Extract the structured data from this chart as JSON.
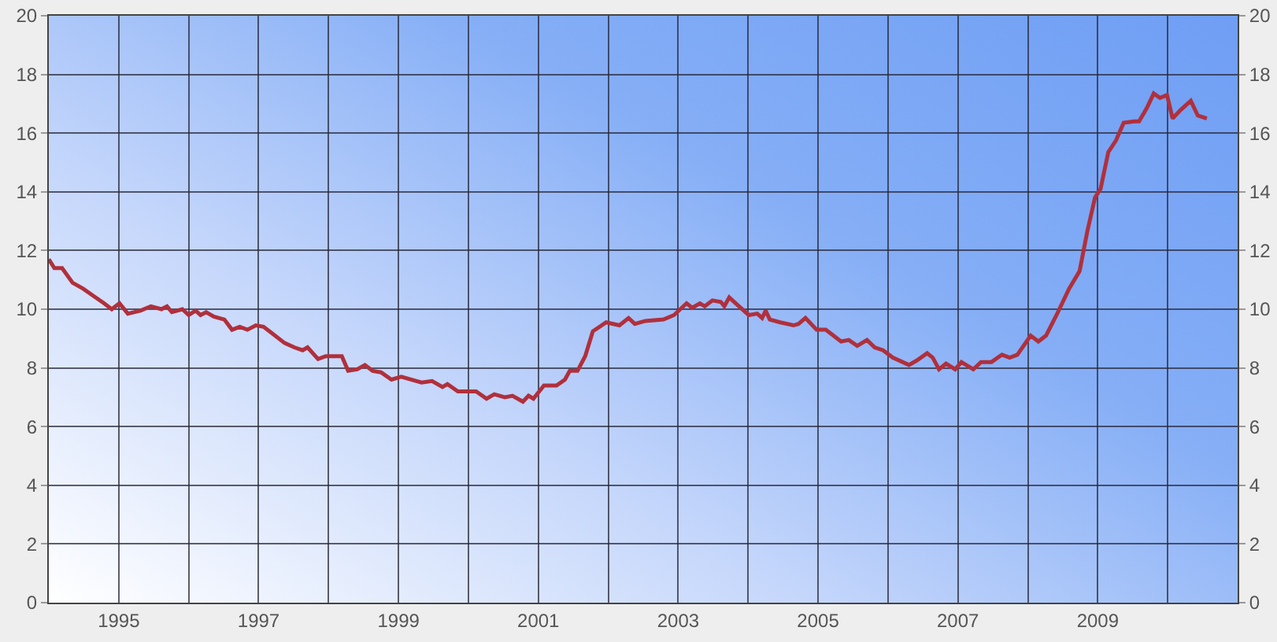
{
  "chart_data": {
    "type": "line",
    "x": [
      1994.0,
      1994.08,
      1994.19,
      1994.34,
      1994.49,
      1994.64,
      1994.79,
      1994.9,
      1995.01,
      1995.13,
      1995.31,
      1995.46,
      1995.61,
      1995.69,
      1995.76,
      1995.91,
      1996.0,
      1996.1,
      1996.17,
      1996.25,
      1996.36,
      1996.51,
      1996.62,
      1996.73,
      1996.84,
      1996.96,
      1997.07,
      1997.18,
      1997.37,
      1997.51,
      1997.63,
      1997.7,
      1997.85,
      1997.96,
      1998.19,
      1998.28,
      1998.41,
      1998.52,
      1998.63,
      1998.75,
      1998.9,
      1999.04,
      1999.33,
      1999.48,
      1999.63,
      1999.7,
      1999.85,
      2000.11,
      2000.26,
      2000.37,
      2000.52,
      2000.63,
      2000.78,
      2000.86,
      2000.93,
      2001.08,
      2001.26,
      2001.38,
      2001.45,
      2001.56,
      2001.67,
      2001.78,
      2001.97,
      2002.16,
      2002.29,
      2002.38,
      2002.53,
      2002.79,
      2002.94,
      2003.12,
      2003.2,
      2003.31,
      2003.38,
      2003.49,
      2003.61,
      2003.66,
      2003.73,
      2003.87,
      2004.01,
      2004.13,
      2004.2,
      2004.25,
      2004.31,
      2004.46,
      2004.65,
      2004.72,
      2004.82,
      2004.98,
      2005.11,
      2005.33,
      2005.44,
      2005.56,
      2005.7,
      2005.81,
      2005.93,
      2006.07,
      2006.3,
      2006.41,
      2006.56,
      2006.64,
      2006.73,
      2006.83,
      2006.96,
      2007.05,
      2007.22,
      2007.33,
      2007.48,
      2007.63,
      2007.74,
      2007.85,
      2008.04,
      2008.15,
      2008.26,
      2008.41,
      2008.59,
      2008.74,
      2008.85,
      2008.96,
      2009.04,
      2009.15,
      2009.26,
      2009.37,
      2009.52,
      2009.59,
      2009.7,
      2009.8,
      2009.89,
      2009.99,
      2010.07,
      2010.19,
      2010.33,
      2010.43,
      2010.56
    ],
    "series": [
      {
        "color": "#b0303c",
        "values": [
          11.7,
          11.4,
          11.4,
          10.9,
          10.7,
          10.45,
          10.2,
          10.0,
          10.2,
          9.85,
          9.95,
          10.1,
          10.0,
          10.1,
          9.9,
          10.0,
          9.8,
          9.95,
          9.8,
          9.9,
          9.75,
          9.65,
          9.3,
          9.4,
          9.3,
          9.45,
          9.4,
          9.2,
          8.85,
          8.7,
          8.6,
          8.7,
          8.3,
          8.4,
          8.4,
          7.9,
          7.95,
          8.1,
          7.9,
          7.85,
          7.6,
          7.7,
          7.5,
          7.55,
          7.35,
          7.45,
          7.2,
          7.2,
          6.95,
          7.1,
          7.0,
          7.05,
          6.85,
          7.05,
          6.95,
          7.4,
          7.4,
          7.6,
          7.9,
          7.9,
          8.4,
          9.25,
          9.55,
          9.45,
          9.7,
          9.5,
          9.6,
          9.65,
          9.8,
          10.2,
          10.05,
          10.2,
          10.1,
          10.3,
          10.25,
          10.1,
          10.4,
          10.1,
          9.8,
          9.85,
          9.7,
          9.95,
          9.65,
          9.55,
          9.45,
          9.5,
          9.7,
          9.3,
          9.3,
          8.9,
          8.95,
          8.75,
          8.95,
          8.7,
          8.6,
          8.35,
          8.1,
          8.25,
          8.5,
          8.35,
          7.95,
          8.15,
          7.95,
          8.2,
          7.95,
          8.2,
          8.2,
          8.45,
          8.35,
          8.45,
          9.1,
          8.9,
          9.1,
          9.8,
          10.7,
          11.3,
          12.65,
          13.8,
          14.1,
          15.35,
          15.75,
          16.35,
          16.4,
          16.4,
          16.85,
          17.35,
          17.2,
          17.3,
          16.5,
          16.8,
          17.1,
          16.6,
          16.5
        ]
      }
    ],
    "xlim": [
      1994,
      2011
    ],
    "xticks": [
      {
        "value": 1995,
        "label": "1995"
      },
      {
        "value": 1996,
        "label": null
      },
      {
        "value": 1997,
        "label": "1997"
      },
      {
        "value": 1998,
        "label": null
      },
      {
        "value": 1999,
        "label": "1999"
      },
      {
        "value": 2000,
        "label": null
      },
      {
        "value": 2001,
        "label": "2001"
      },
      {
        "value": 2002,
        "label": null
      },
      {
        "value": 2003,
        "label": "2003"
      },
      {
        "value": 2004,
        "label": null
      },
      {
        "value": 2005,
        "label": "2005"
      },
      {
        "value": 2006,
        "label": null
      },
      {
        "value": 2007,
        "label": "2007"
      },
      {
        "value": 2008,
        "label": null
      },
      {
        "value": 2009,
        "label": "2009"
      },
      {
        "value": 2010,
        "label": null
      }
    ],
    "ylim": [
      0,
      20
    ],
    "yticks": [
      0,
      2,
      4,
      6,
      8,
      10,
      12,
      14,
      16,
      18,
      20
    ],
    "y2lim": [
      0,
      20
    ],
    "y2ticks": [
      0,
      2,
      4,
      6,
      8,
      10,
      12,
      14,
      16,
      18,
      20
    ],
    "grid": true,
    "marker": "none",
    "line_style": "solid"
  }
}
